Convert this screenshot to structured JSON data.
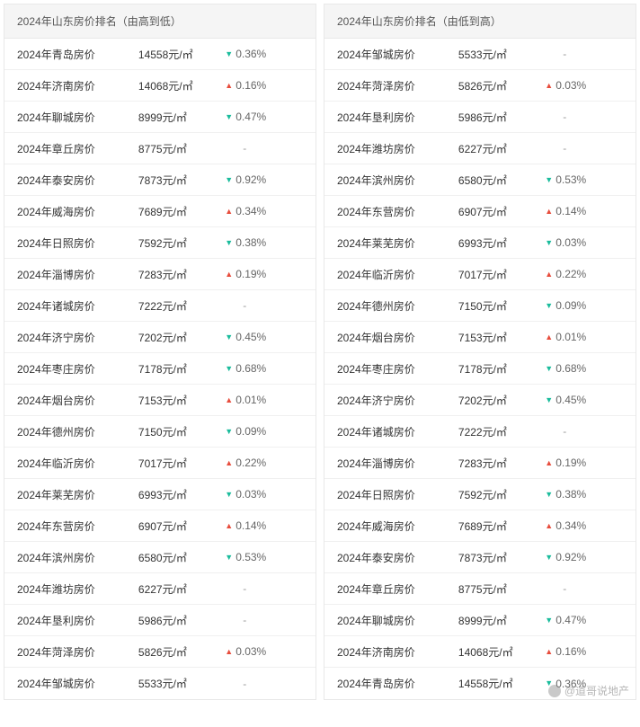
{
  "watermark": "@道哥说地产",
  "panels": [
    {
      "title": "2024年山东房价排名（由高到低）",
      "rows": [
        {
          "name": "2024年青岛房价",
          "price": "14558元/㎡",
          "dir": "down",
          "change": "0.36%"
        },
        {
          "name": "2024年济南房价",
          "price": "14068元/㎡",
          "dir": "up",
          "change": "0.16%"
        },
        {
          "name": "2024年聊城房价",
          "price": "8999元/㎡",
          "dir": "down",
          "change": "0.47%"
        },
        {
          "name": "2024年章丘房价",
          "price": "8775元/㎡",
          "dir": "none",
          "change": "-"
        },
        {
          "name": "2024年泰安房价",
          "price": "7873元/㎡",
          "dir": "down",
          "change": "0.92%"
        },
        {
          "name": "2024年威海房价",
          "price": "7689元/㎡",
          "dir": "up",
          "change": "0.34%"
        },
        {
          "name": "2024年日照房价",
          "price": "7592元/㎡",
          "dir": "down",
          "change": "0.38%"
        },
        {
          "name": "2024年淄博房价",
          "price": "7283元/㎡",
          "dir": "up",
          "change": "0.19%"
        },
        {
          "name": "2024年诸城房价",
          "price": "7222元/㎡",
          "dir": "none",
          "change": "-"
        },
        {
          "name": "2024年济宁房价",
          "price": "7202元/㎡",
          "dir": "down",
          "change": "0.45%"
        },
        {
          "name": "2024年枣庄房价",
          "price": "7178元/㎡",
          "dir": "down",
          "change": "0.68%"
        },
        {
          "name": "2024年烟台房价",
          "price": "7153元/㎡",
          "dir": "up",
          "change": "0.01%"
        },
        {
          "name": "2024年德州房价",
          "price": "7150元/㎡",
          "dir": "down",
          "change": "0.09%"
        },
        {
          "name": "2024年临沂房价",
          "price": "7017元/㎡",
          "dir": "up",
          "change": "0.22%"
        },
        {
          "name": "2024年莱芜房价",
          "price": "6993元/㎡",
          "dir": "down",
          "change": "0.03%"
        },
        {
          "name": "2024年东营房价",
          "price": "6907元/㎡",
          "dir": "up",
          "change": "0.14%"
        },
        {
          "name": "2024年滨州房价",
          "price": "6580元/㎡",
          "dir": "down",
          "change": "0.53%"
        },
        {
          "name": "2024年潍坊房价",
          "price": "6227元/㎡",
          "dir": "none",
          "change": "-"
        },
        {
          "name": "2024年垦利房价",
          "price": "5986元/㎡",
          "dir": "none",
          "change": "-"
        },
        {
          "name": "2024年菏泽房价",
          "price": "5826元/㎡",
          "dir": "up",
          "change": "0.03%"
        },
        {
          "name": "2024年邹城房价",
          "price": "5533元/㎡",
          "dir": "none",
          "change": "-"
        }
      ]
    },
    {
      "title": "2024年山东房价排名（由低到高）",
      "rows": [
        {
          "name": "2024年邹城房价",
          "price": "5533元/㎡",
          "dir": "none",
          "change": "-"
        },
        {
          "name": "2024年菏泽房价",
          "price": "5826元/㎡",
          "dir": "up",
          "change": "0.03%"
        },
        {
          "name": "2024年垦利房价",
          "price": "5986元/㎡",
          "dir": "none",
          "change": "-"
        },
        {
          "name": "2024年潍坊房价",
          "price": "6227元/㎡",
          "dir": "none",
          "change": "-"
        },
        {
          "name": "2024年滨州房价",
          "price": "6580元/㎡",
          "dir": "down",
          "change": "0.53%"
        },
        {
          "name": "2024年东营房价",
          "price": "6907元/㎡",
          "dir": "up",
          "change": "0.14%"
        },
        {
          "name": "2024年莱芜房价",
          "price": "6993元/㎡",
          "dir": "down",
          "change": "0.03%"
        },
        {
          "name": "2024年临沂房价",
          "price": "7017元/㎡",
          "dir": "up",
          "change": "0.22%"
        },
        {
          "name": "2024年德州房价",
          "price": "7150元/㎡",
          "dir": "down",
          "change": "0.09%"
        },
        {
          "name": "2024年烟台房价",
          "price": "7153元/㎡",
          "dir": "up",
          "change": "0.01%"
        },
        {
          "name": "2024年枣庄房价",
          "price": "7178元/㎡",
          "dir": "down",
          "change": "0.68%"
        },
        {
          "name": "2024年济宁房价",
          "price": "7202元/㎡",
          "dir": "down",
          "change": "0.45%"
        },
        {
          "name": "2024年诸城房价",
          "price": "7222元/㎡",
          "dir": "none",
          "change": "-"
        },
        {
          "name": "2024年淄博房价",
          "price": "7283元/㎡",
          "dir": "up",
          "change": "0.19%"
        },
        {
          "name": "2024年日照房价",
          "price": "7592元/㎡",
          "dir": "down",
          "change": "0.38%"
        },
        {
          "name": "2024年威海房价",
          "price": "7689元/㎡",
          "dir": "up",
          "change": "0.34%"
        },
        {
          "name": "2024年泰安房价",
          "price": "7873元/㎡",
          "dir": "down",
          "change": "0.92%"
        },
        {
          "name": "2024年章丘房价",
          "price": "8775元/㎡",
          "dir": "none",
          "change": "-"
        },
        {
          "name": "2024年聊城房价",
          "price": "8999元/㎡",
          "dir": "down",
          "change": "0.47%"
        },
        {
          "name": "2024年济南房价",
          "price": "14068元/㎡",
          "dir": "up",
          "change": "0.16%"
        },
        {
          "name": "2024年青岛房价",
          "price": "14558元/㎡",
          "dir": "down",
          "change": "0.36%"
        }
      ]
    }
  ]
}
